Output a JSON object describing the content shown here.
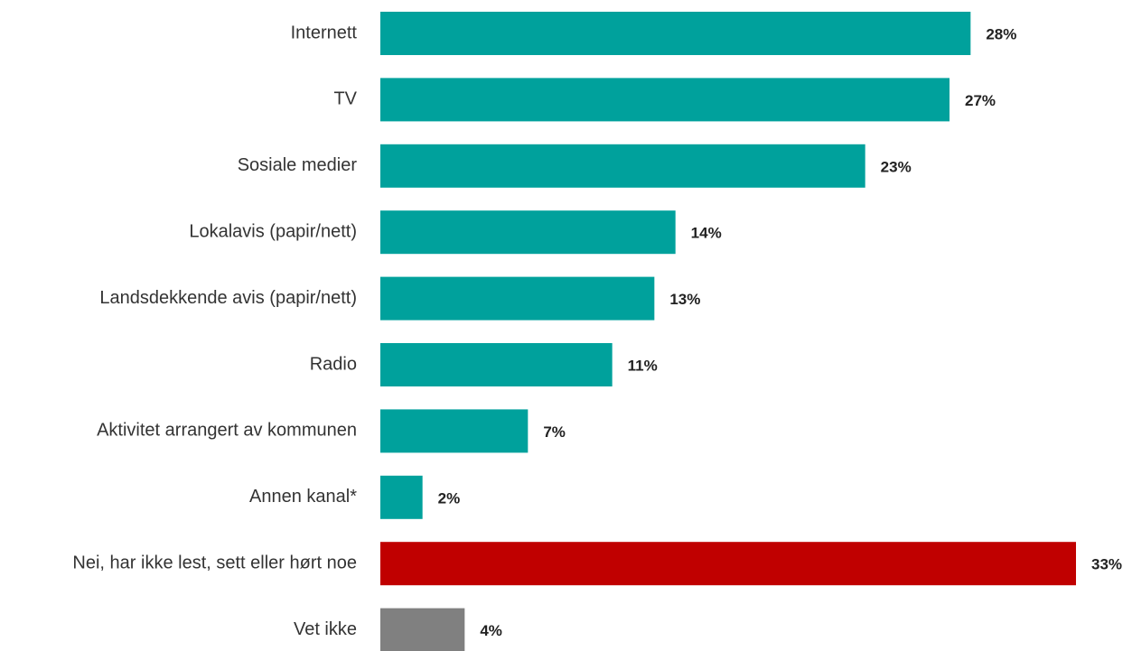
{
  "chart_data": {
    "type": "bar",
    "orientation": "horizontal",
    "categories": [
      "Internett",
      "TV",
      "Sosiale medier",
      "Lokalavis (papir/nett)",
      "Landsdekkende avis (papir/nett)",
      "Radio",
      "Aktivitet arrangert av kommunen",
      "Annen kanal*",
      "Nei, har ikke lest, sett eller hørt noe",
      "Vet ikke"
    ],
    "values": [
      28,
      27,
      23,
      14,
      13,
      11,
      7,
      2,
      33,
      4
    ],
    "value_labels": [
      "28%",
      "27%",
      "23%",
      "14%",
      "13%",
      "11%",
      "7%",
      "2%",
      "33%",
      "4%"
    ],
    "colors": [
      "#00a19c",
      "#00a19c",
      "#00a19c",
      "#00a19c",
      "#00a19c",
      "#00a19c",
      "#00a19c",
      "#00a19c",
      "#c00000",
      "#808080"
    ]
  }
}
